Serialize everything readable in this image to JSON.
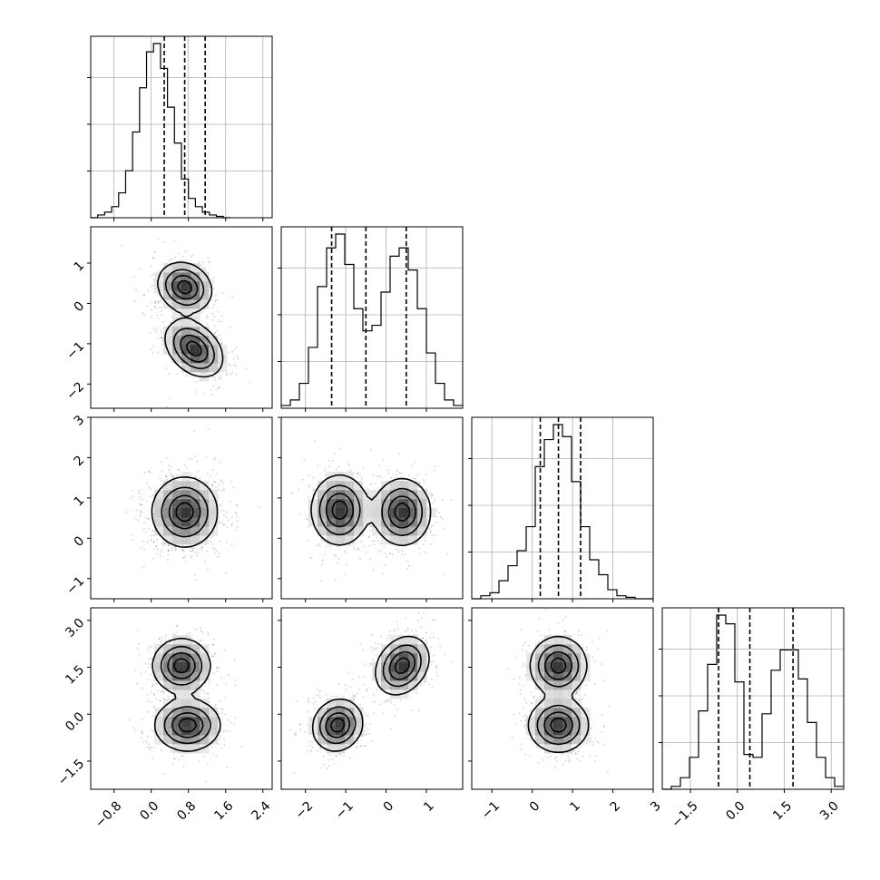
{
  "chart_data": {
    "type": "corner",
    "title": "",
    "parameters": [
      {
        "index": 0,
        "range": [
          -1.3,
          2.6
        ],
        "ticks": [
          -0.8,
          0.0,
          0.8,
          1.6,
          2.4
        ],
        "tick_labels": [
          "−0.8",
          "0.0",
          "0.8",
          "1.6",
          "2.4"
        ],
        "quantiles": [
          0.28,
          0.72,
          1.16
        ],
        "histogram": {
          "bin_start": -1.3,
          "bin_width": 0.15,
          "counts": [
            0,
            1,
            2,
            4,
            9,
            17,
            31,
            47,
            60,
            63,
            54,
            40,
            27,
            14,
            7,
            4,
            2,
            1,
            0.5,
            0
          ]
        },
        "modes": []
      },
      {
        "index": 1,
        "range": [
          -2.6,
          1.9
        ],
        "ticks": [
          -2,
          -1,
          0,
          1
        ],
        "tick_labels": [
          "−2",
          "−1",
          "0",
          "1"
        ],
        "quantiles": [
          -1.35,
          -0.5,
          0.5
        ],
        "histogram": {
          "bin_start": -2.6,
          "bin_width": 0.225,
          "counts": [
            1,
            3,
            9,
            22,
            44,
            58,
            63,
            52,
            36,
            28,
            30,
            42,
            55,
            58,
            50,
            36,
            20,
            9,
            3,
            1
          ]
        },
        "modes": [
          {
            "mean": [
              0.72,
              0.4
            ],
            "sigma": [
              0.28,
              0.3
            ],
            "rho": -0.15
          },
          {
            "mean": [
              0.92,
              -1.12
            ],
            "sigma": [
              0.3,
              0.34
            ],
            "rho": -0.35
          }
        ]
      },
      {
        "index": 2,
        "range": [
          -1.5,
          3.0
        ],
        "ticks": [
          -1,
          0,
          1,
          2,
          3
        ],
        "tick_labels": [
          "−1",
          "0",
          "1",
          "2",
          "3"
        ],
        "quantiles": [
          0.2,
          0.65,
          1.2
        ],
        "histogram": {
          "bin_start": -1.5,
          "bin_width": 0.225,
          "counts": [
            0,
            1,
            2,
            6,
            11,
            16,
            24,
            44,
            53,
            58,
            54,
            39,
            24,
            13,
            8,
            3,
            1,
            0.5,
            0,
            0
          ]
        },
        "modes": [
          {
            "mean": [
              0.72,
              0.65
            ],
            "sigma": [
              0.32,
              0.4
            ],
            "rho": 0.0
          },
          {
            "mean": [
              -1.15,
              0.7,
              0.4,
              0.65
            ],
            "sigma": [
              0.34,
              0.4,
              0.34,
              0.4
            ],
            "rho": 0.0
          }
        ]
      },
      {
        "index": 3,
        "range": [
          -2.4,
          3.4
        ],
        "ticks": [
          -1.5,
          0.0,
          1.5,
          3.0
        ],
        "tick_labels": [
          "−1.5",
          "0.0",
          "1.5",
          "3.0"
        ],
        "quantiles": [
          -0.6,
          0.4,
          1.78
        ],
        "histogram": {
          "bin_start": -2.4,
          "bin_width": 0.29,
          "counts": [
            0,
            1,
            4,
            11,
            27,
            43,
            60,
            57,
            37,
            12,
            11,
            26,
            41,
            48,
            48,
            38,
            23,
            11,
            4,
            1
          ]
        },
        "modes": []
      }
    ],
    "pairs": [
      {
        "row": 1,
        "col": 0,
        "modes": [
          {
            "m": [
              0.72,
              0.4
            ],
            "s": [
              0.28,
              0.3
            ],
            "r": -0.15,
            "w": 0.5
          },
          {
            "m": [
              0.92,
              -1.12
            ],
            "s": [
              0.3,
              0.34
            ],
            "r": -0.35,
            "w": 0.5
          }
        ]
      },
      {
        "row": 2,
        "col": 0,
        "modes": [
          {
            "m": [
              0.72,
              0.65
            ],
            "s": [
              0.34,
              0.42
            ],
            "r": 0.0,
            "w": 1.0
          }
        ]
      },
      {
        "row": 2,
        "col": 1,
        "modes": [
          {
            "m": [
              -1.15,
              0.7
            ],
            "s": [
              0.34,
              0.42
            ],
            "r": 0.0,
            "w": 0.5
          },
          {
            "m": [
              0.4,
              0.65
            ],
            "s": [
              0.34,
              0.4
            ],
            "r": 0.0,
            "w": 0.5
          }
        ]
      },
      {
        "row": 3,
        "col": 0,
        "modes": [
          {
            "m": [
              0.65,
              1.55
            ],
            "s": [
              0.3,
              0.42
            ],
            "r": 0.0,
            "w": 0.5
          },
          {
            "m": [
              0.78,
              -0.35
            ],
            "s": [
              0.34,
              0.4
            ],
            "r": 0.0,
            "w": 0.5
          }
        ]
      },
      {
        "row": 3,
        "col": 1,
        "modes": [
          {
            "m": [
              -1.2,
              -0.35
            ],
            "s": [
              0.3,
              0.4
            ],
            "r": 0.1,
            "w": 0.5
          },
          {
            "m": [
              0.4,
              1.55
            ],
            "s": [
              0.32,
              0.45
            ],
            "r": 0.25,
            "w": 0.5
          }
        ]
      },
      {
        "row": 3,
        "col": 2,
        "modes": [
          {
            "m": [
              0.65,
              1.55
            ],
            "s": [
              0.34,
              0.45
            ],
            "r": 0.0,
            "w": 0.5
          },
          {
            "m": [
              0.65,
              -0.35
            ],
            "s": [
              0.36,
              0.42
            ],
            "r": 0.0,
            "w": 0.5
          }
        ]
      }
    ],
    "axis_labels": [
      "",
      "",
      "",
      ""
    ],
    "grid": true,
    "legend": "none"
  }
}
